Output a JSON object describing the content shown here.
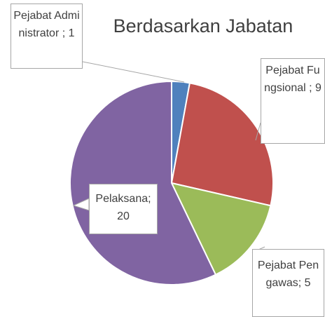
{
  "chart_data": {
    "type": "pie",
    "title": "Berdasarkan Jabatan",
    "values": [
      1,
      9,
      5,
      20
    ],
    "value_labels": [
      "Pejabat Administrator ; 1",
      "Pejabat Fungsional ; 9",
      "Pejabat Pengawas; 5",
      "Pelaksana; 20"
    ],
    "colors": [
      "#4f81bd",
      "#c0504d",
      "#9bbb59",
      "#8064a2"
    ]
  }
}
